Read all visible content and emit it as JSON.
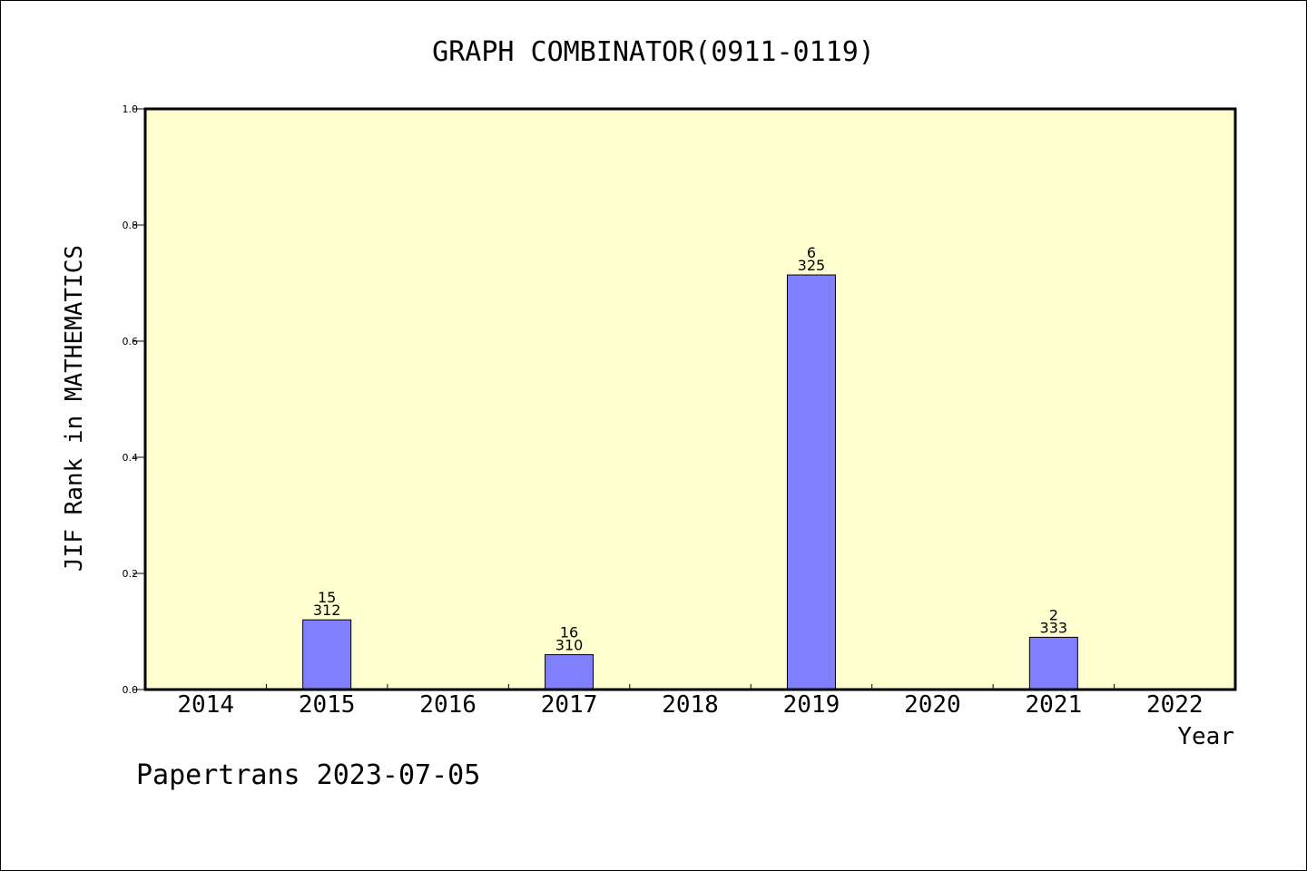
{
  "chart_data": {
    "type": "bar",
    "title": "GRAPH COMBINATOR(0911-0119)",
    "xlabel": "Year",
    "ylabel": "JIF Rank in MATHEMATICS",
    "categories": [
      "2014",
      "2015",
      "2016",
      "2017",
      "2018",
      "2019",
      "2020",
      "2021",
      "2022"
    ],
    "values": [
      null,
      0.12,
      null,
      0.06,
      null,
      0.714,
      null,
      0.09,
      null
    ],
    "rank_labels": [
      "",
      "15",
      "",
      "16",
      "",
      "6",
      "",
      "2",
      ""
    ],
    "total_labels": [
      "",
      "312",
      "",
      "310",
      "",
      "325",
      "",
      "333",
      ""
    ],
    "ylim": [
      0,
      1.0
    ],
    "yticks": [
      "0.0",
      "0.2",
      "0.4",
      "0.6",
      "0.8",
      "1.0"
    ],
    "grid": false,
    "colors": {
      "plot_bg": "#ffffd0",
      "bar": "#8080ff",
      "bar_edge": "#000000"
    }
  },
  "footer": "Papertrans 2023-07-05"
}
